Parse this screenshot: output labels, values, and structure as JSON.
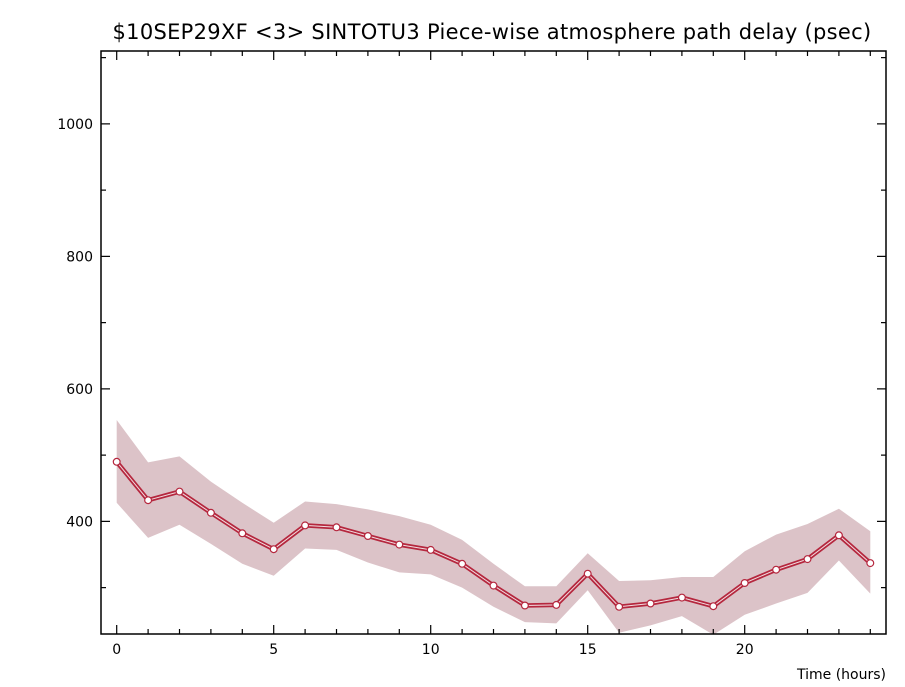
{
  "chart_data": {
    "type": "line",
    "title": "$10SEP29XF <3>  SINTOTU3  Piece-wise atmosphere path delay (psec)",
    "xlabel": "Time (hours)",
    "ylabel": "",
    "xlim": [
      -0.5,
      24.5
    ],
    "ylim": [
      230,
      1110
    ],
    "x_ticks": [
      0,
      5,
      10,
      15,
      20
    ],
    "y_ticks": [
      400,
      600,
      800,
      1000
    ],
    "grid": false,
    "series": [
      {
        "x": [
          0,
          1,
          2,
          3,
          4,
          5,
          6,
          7,
          8,
          9,
          10,
          11,
          12,
          13,
          14,
          15,
          16,
          17,
          18,
          19,
          20,
          21,
          22,
          23,
          24
        ],
        "values": [
          490,
          432,
          445,
          413,
          382,
          358,
          394,
          391,
          378,
          365,
          357,
          336,
          303,
          273,
          274,
          321,
          271,
          276,
          285,
          272,
          307,
          327,
          343,
          379,
          337
        ],
        "upper": [
          553,
          489,
          498,
          460,
          428,
          398,
          430,
          426,
          418,
          408,
          395,
          372,
          336,
          302,
          302,
          352,
          310,
          311,
          316,
          316,
          355,
          380,
          396,
          419,
          385
        ],
        "lower": [
          428,
          375,
          395,
          366,
          336,
          318,
          359,
          357,
          338,
          323,
          320,
          300,
          271,
          248,
          246,
          296,
          232,
          243,
          257,
          229,
          259,
          276,
          292,
          341,
          291
        ]
      }
    ],
    "colors": {
      "line": "#b5273e",
      "band": "#dcc3c8",
      "marker_fill": "#ffffff",
      "axes": "#000000"
    }
  }
}
